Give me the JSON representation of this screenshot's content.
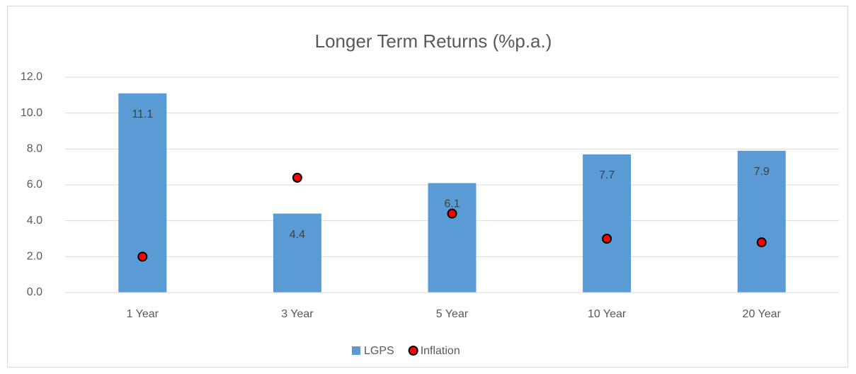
{
  "chart_data": {
    "type": "bar",
    "title": "Longer Term Returns (%p.a.)",
    "categories": [
      "1 Year",
      "3 Year",
      "5 Year",
      "10 Year",
      "20 Year"
    ],
    "series": [
      {
        "name": "LGPS",
        "type": "bar",
        "color": "#5b9bd5",
        "values": [
          11.1,
          4.4,
          6.1,
          7.7,
          7.9
        ]
      },
      {
        "name": "Inflation",
        "type": "scatter",
        "color": "#ff0000",
        "values": [
          2.0,
          6.4,
          4.4,
          3.0,
          2.8
        ]
      }
    ],
    "ylim": [
      0,
      12
    ],
    "yticks": [
      {
        "value": 0,
        "label": "0.0"
      },
      {
        "value": 2,
        "label": "2.0"
      },
      {
        "value": 4,
        "label": "4.0"
      },
      {
        "value": 6,
        "label": "6.0"
      },
      {
        "value": 8,
        "label": "8.0"
      },
      {
        "value": 10,
        "label": "10.0"
      },
      {
        "value": 12,
        "label": "12.0"
      }
    ],
    "grid": true,
    "legend": "bottom"
  }
}
